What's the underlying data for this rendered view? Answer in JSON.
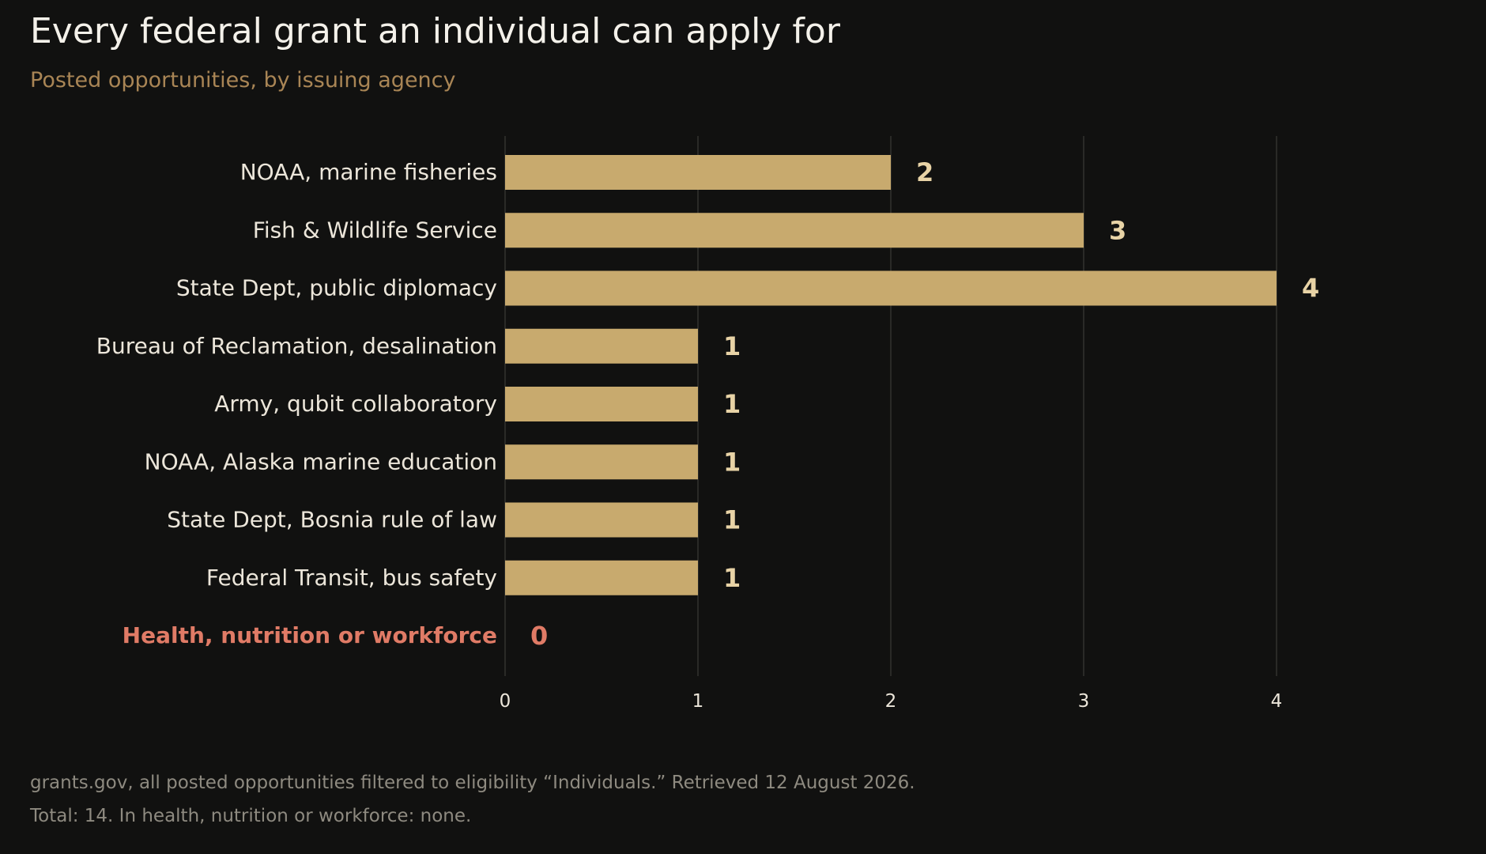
{
  "header": {
    "title": "Every federal grant an individual can apply for",
    "subtitle": "Posted opportunities, by issuing agency"
  },
  "footer": {
    "source": "grants.gov, all posted opportunities filtered to eligibility “Individuals.” Retrieved 12 August 2026.",
    "note": "Total: 14. In health, nutrition or workforce: none."
  },
  "colors": {
    "background": "#111110",
    "bar": "#c8aa6e",
    "bar_label": "#e8d3a6",
    "category_label": "#ece6da",
    "highlight": "#e07b66",
    "gridline": "#2a2a27",
    "tick": "#ece6da"
  },
  "chart_data": {
    "type": "bar",
    "orientation": "horizontal",
    "categories": [
      "NOAA, marine fisheries",
      "Fish & Wildlife Service",
      "State Dept, public diplomacy",
      "Bureau of Reclamation, desalination",
      "Army, qubit collaboratory",
      "NOAA, Alaska marine education",
      "State Dept, Bosnia rule of law",
      "Federal Transit, bus safety",
      "Health, nutrition or workforce"
    ],
    "values": [
      2,
      3,
      4,
      1,
      1,
      1,
      1,
      1,
      0
    ],
    "highlighted_category": "Health, nutrition or workforce",
    "xlim": [
      0,
      4.6
    ],
    "xticks": [
      0,
      1,
      2,
      3,
      4
    ],
    "xlabel": "",
    "ylabel": "",
    "grid": "vertical",
    "data_labels": true
  }
}
